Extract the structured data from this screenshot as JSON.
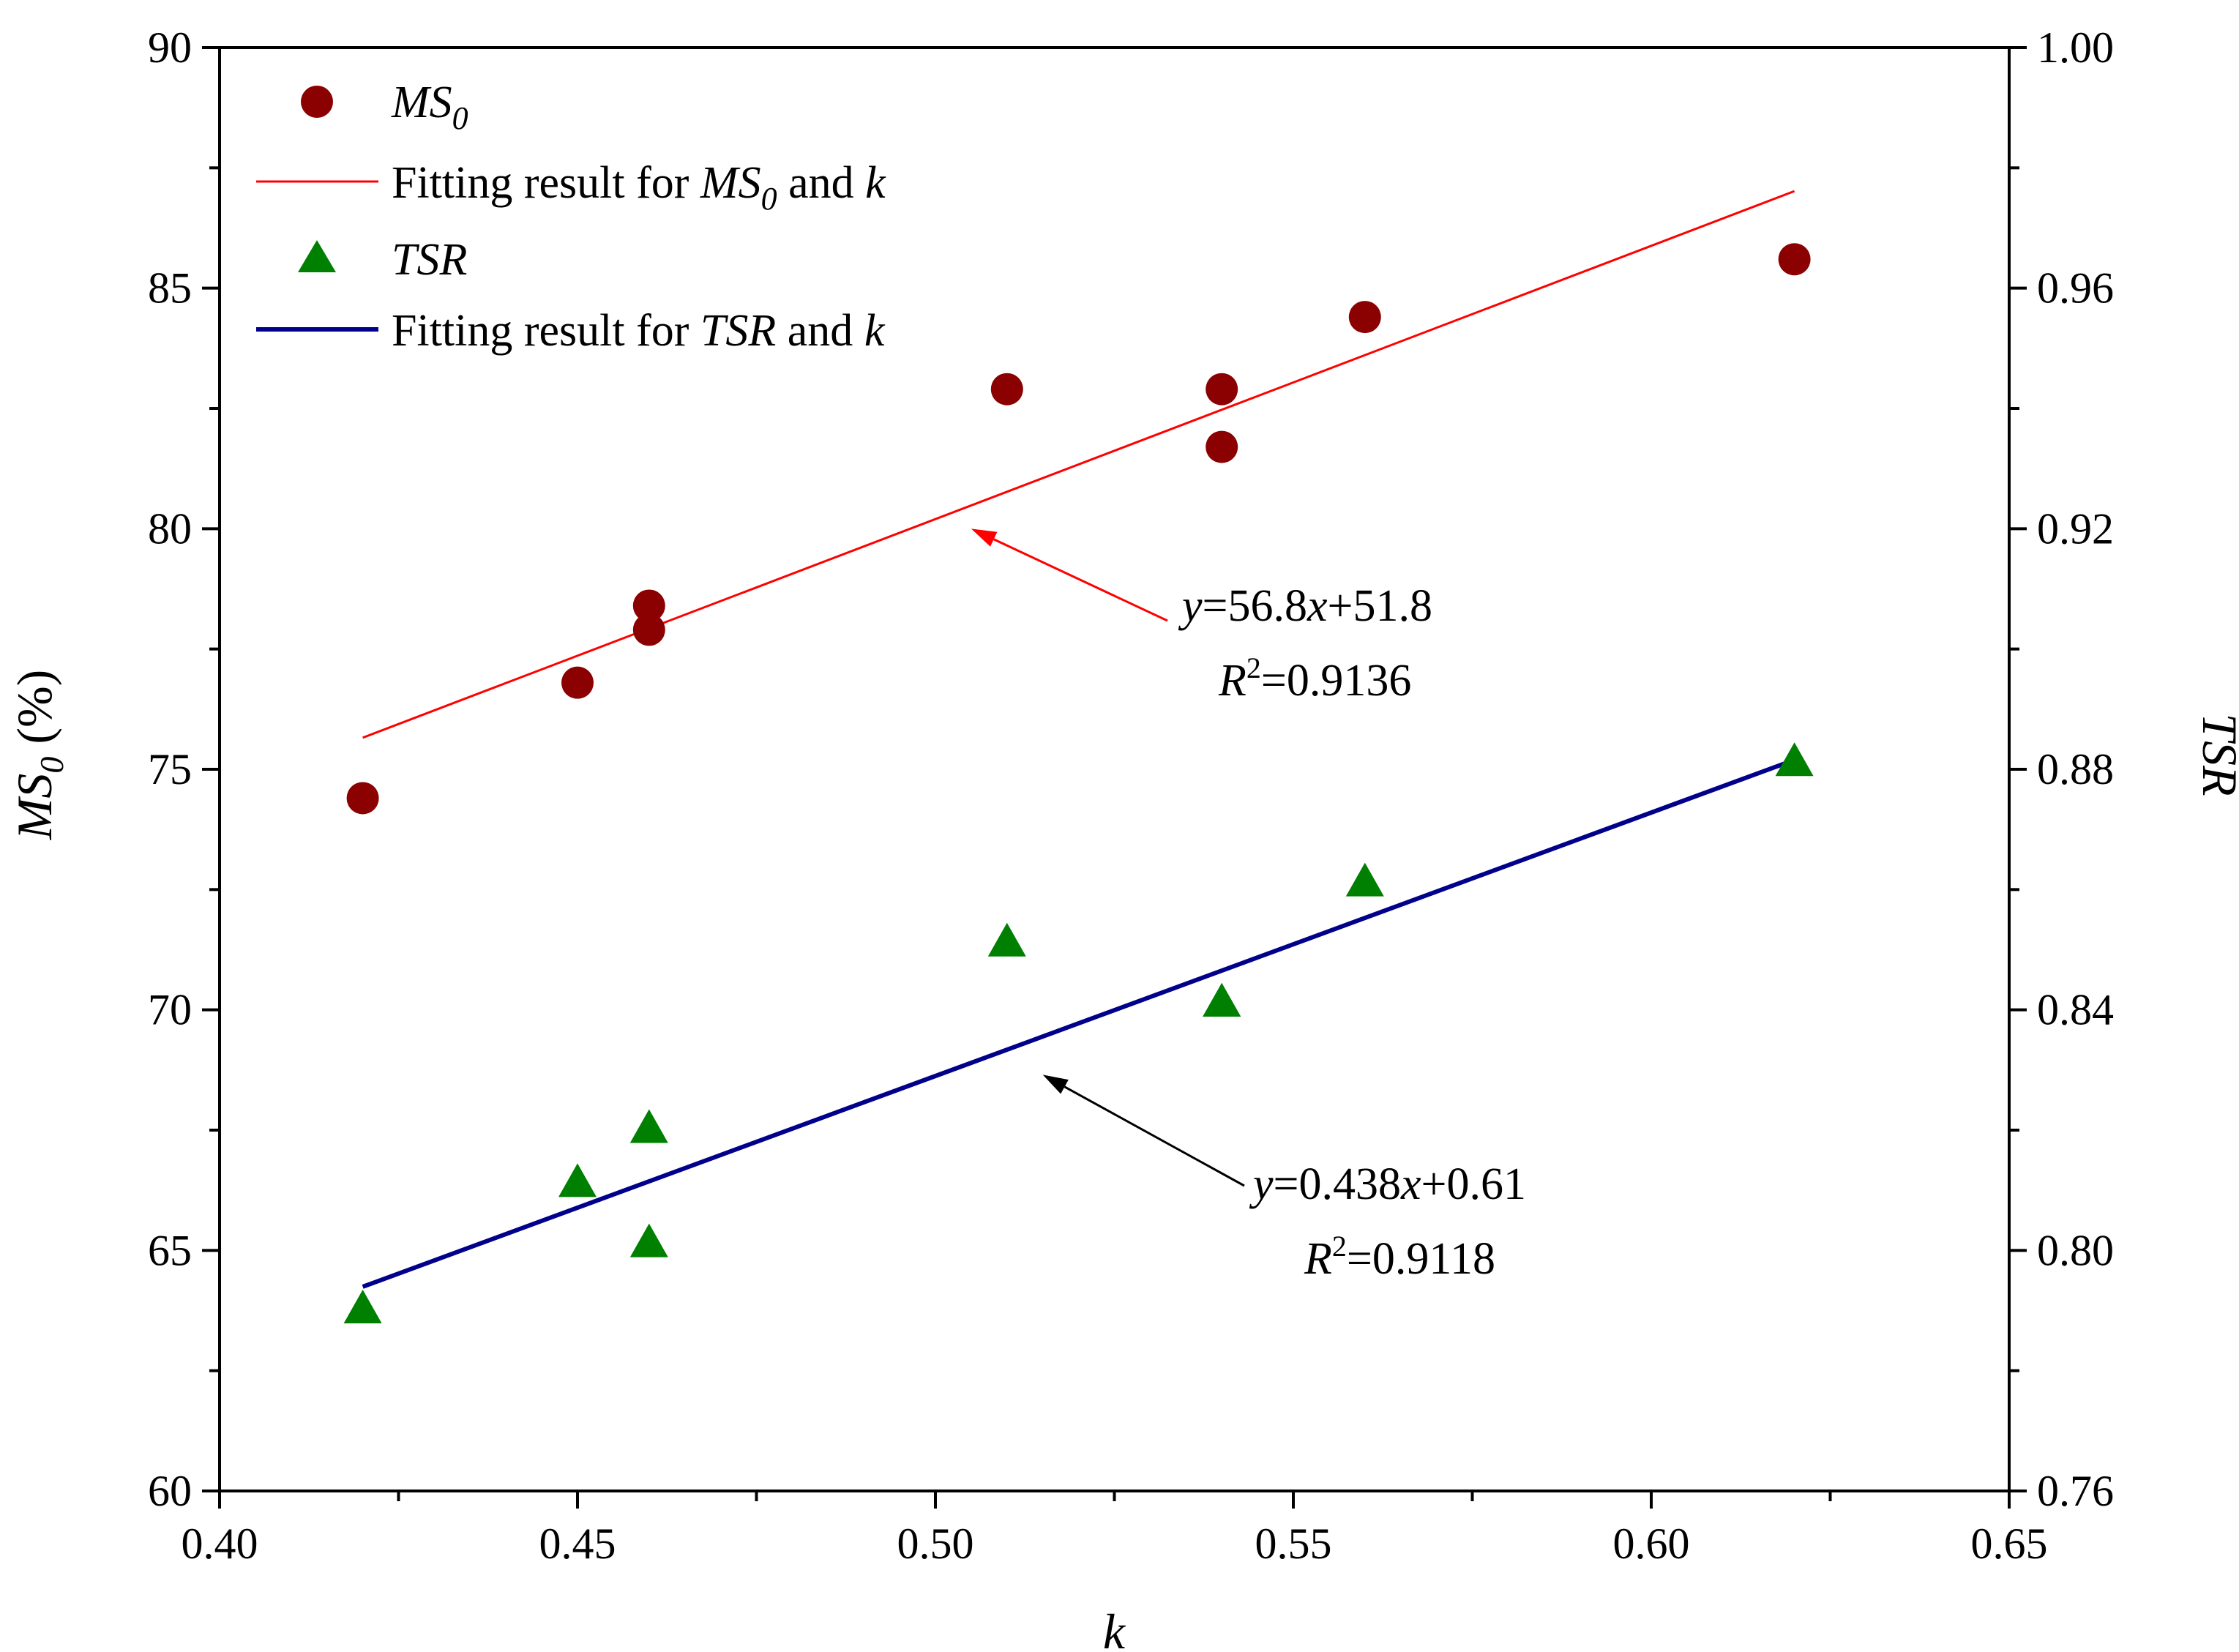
{
  "chart_data": {
    "type": "scatter",
    "title": "",
    "xlabel": "k",
    "ylabel_left": "MS0 (%)",
    "ylabel_right": "TSR",
    "xlim": [
      0.4,
      0.65
    ],
    "ylim_left": [
      60,
      90
    ],
    "ylim_right": [
      0.76,
      1.0
    ],
    "x_ticks": [
      "0.40",
      "0.45",
      "0.50",
      "0.55",
      "0.60",
      "0.65"
    ],
    "y_left_ticks": [
      "60",
      "65",
      "70",
      "75",
      "80",
      "85",
      "90"
    ],
    "y_right_ticks": [
      "0.76",
      "0.80",
      "0.84",
      "0.88",
      "0.92",
      "0.96",
      "1.00"
    ],
    "grid": false,
    "legend_position": "top-left",
    "series": [
      {
        "name": "MS0",
        "axis": "left",
        "marker": "circle",
        "color": "#8b0000",
        "x": [
          0.42,
          0.45,
          0.46,
          0.46,
          0.51,
          0.54,
          0.54,
          0.56,
          0.62
        ],
        "y": [
          74.4,
          76.8,
          78.4,
          77.9,
          82.9,
          82.9,
          81.7,
          84.4,
          85.6
        ]
      },
      {
        "name": "TSR",
        "axis": "right",
        "marker": "triangle",
        "color": "#008000",
        "x": [
          0.42,
          0.45,
          0.46,
          0.46,
          0.51,
          0.54,
          0.54,
          0.56,
          0.62
        ],
        "y": [
          0.79,
          0.811,
          0.82,
          0.801,
          0.851,
          0.841,
          0.841,
          0.861,
          0.881
        ]
      }
    ],
    "fits": [
      {
        "name": "Fitting result for MS0 and k",
        "axis": "left",
        "color": "#ff0000",
        "x": [
          0.42,
          0.62
        ],
        "slope": 56.8,
        "intercept": 51.8
      },
      {
        "name": "Fitting result for TSR and k",
        "axis": "right",
        "color": "#00008b",
        "x": [
          0.42,
          0.62
        ],
        "slope": 0.438,
        "intercept": 0.61
      }
    ],
    "annotations": [
      {
        "id": "ms0",
        "equation": "y=56.8x+51.8",
        "r2": "R2=0.9136",
        "color": "#ff0000",
        "arrow_target_x": 0.505,
        "arrow_target_y": 80.0,
        "arrow_target_axis": "left"
      },
      {
        "id": "tsr",
        "equation": "y=0.438x+0.61",
        "r2": "R2=0.9118",
        "color": "#000000",
        "arrow_target_x": 0.515,
        "arrow_target_y": 0.8292,
        "arrow_target_axis": "right"
      }
    ]
  },
  "legend": {
    "ms0_label": "MS0",
    "ms0_fit_label": "Fitting result for MS0 and k",
    "tsr_label": "TSR",
    "tsr_fit_label": "Fitting result for TSR and k"
  }
}
